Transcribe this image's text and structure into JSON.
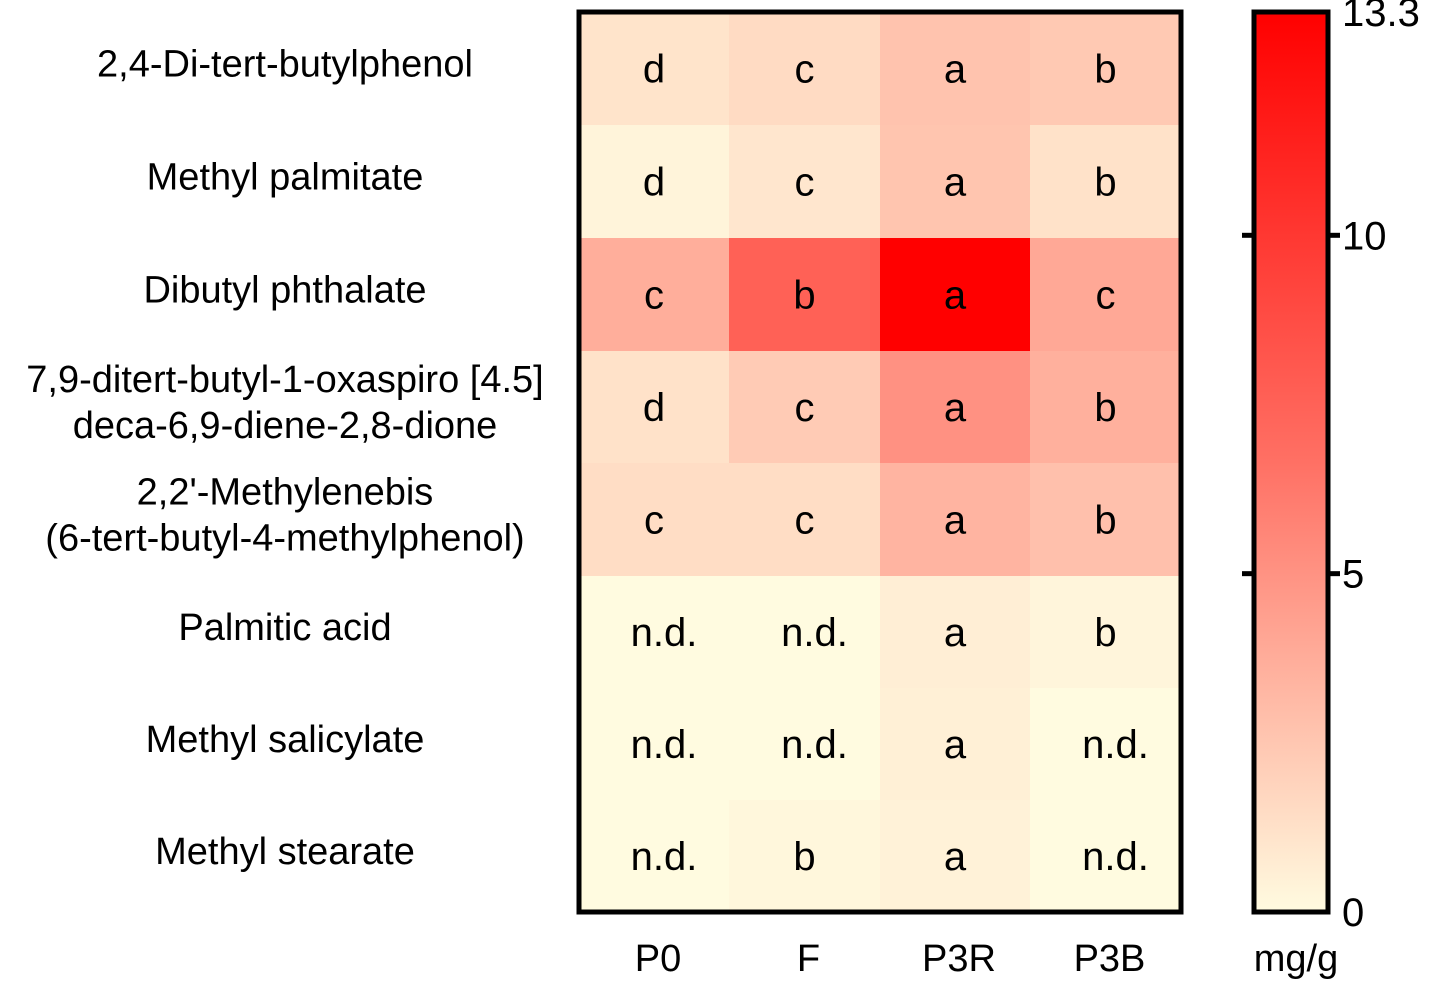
{
  "chart_data": {
    "type": "heatmap",
    "title": "",
    "columns": [
      "P0",
      "F",
      "P3R",
      "P3B"
    ],
    "rows": [
      [
        "2,4-Di-tert-butylphenol"
      ],
      [
        "Methyl palmitate"
      ],
      [
        "Dibutyl phthalate"
      ],
      [
        "7,9-ditert-butyl-1-oxaspiro [4.5]",
        "deca-6,9-diene-2,8-dione"
      ],
      [
        "2,2'-Methylenebis",
        "(6-tert-butyl-4-methylphenol)"
      ],
      [
        "Palmitic acid"
      ],
      [
        "Methyl salicylate"
      ],
      [
        "Methyl stearate"
      ]
    ],
    "values": [
      [
        0.8,
        1.2,
        2.3,
        2.0
      ],
      [
        0.2,
        0.7,
        2.2,
        0.9
      ],
      [
        3.3,
        7.5,
        13.3,
        3.6
      ],
      [
        0.9,
        1.9,
        4.8,
        3.2
      ],
      [
        1.1,
        1.1,
        3.0,
        2.4
      ],
      [
        0.0,
        0.0,
        0.4,
        0.15
      ],
      [
        0.0,
        0.0,
        0.35,
        0.0
      ],
      [
        0.0,
        0.1,
        0.25,
        0.0
      ]
    ],
    "cell_labels": [
      [
        "d",
        "c",
        "a",
        "b"
      ],
      [
        "d",
        "c",
        "a",
        "b"
      ],
      [
        "c",
        "b",
        "a",
        "c"
      ],
      [
        "d",
        "c",
        "a",
        "b"
      ],
      [
        "c",
        "c",
        "a",
        "b"
      ],
      [
        "n.d.",
        "n.d.",
        "a",
        "b"
      ],
      [
        "n.d.",
        "n.d.",
        "a",
        "n.d."
      ],
      [
        "n.d.",
        "b",
        "a",
        "n.d."
      ]
    ],
    "colorbar": {
      "min": 0,
      "max": 13.3,
      "ticks": [
        0,
        5,
        10,
        13.3
      ],
      "tick_labels": [
        "0",
        "5",
        "10",
        "13.3"
      ],
      "unit_label": "mg/g",
      "color_low": "#fffbe0",
      "color_high": "#ff0000"
    },
    "grid": false,
    "legend": "right colorbar"
  }
}
